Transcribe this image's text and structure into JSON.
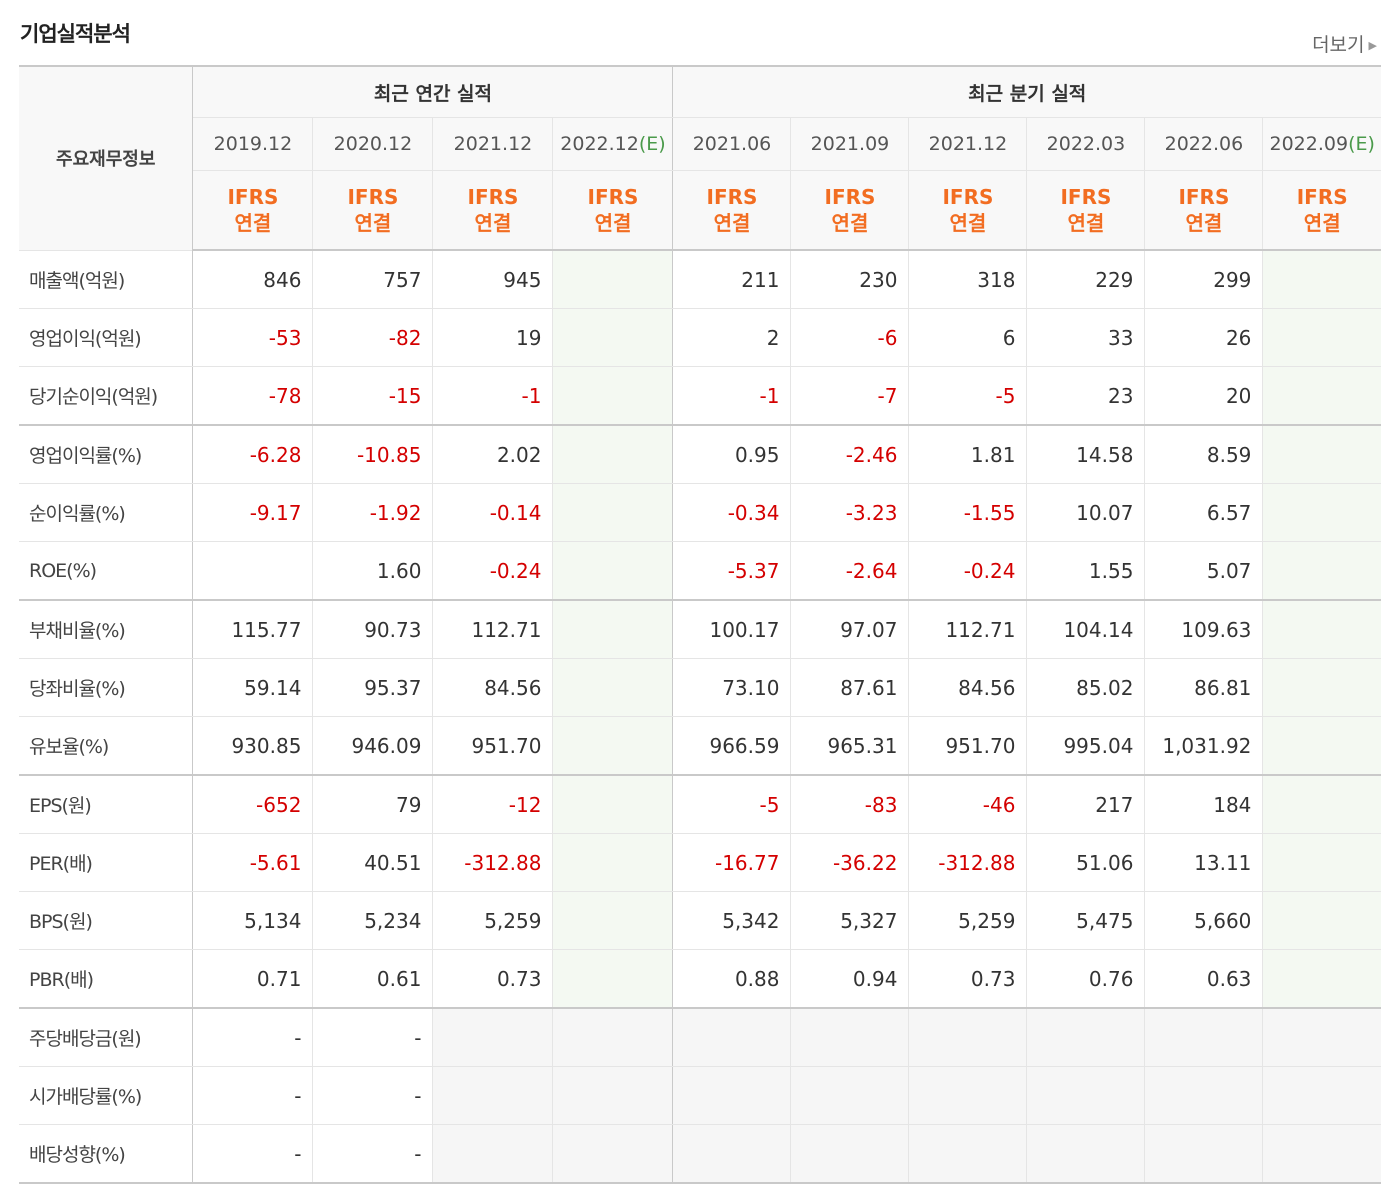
{
  "title": "기업실적분석",
  "more_label": "더보기",
  "header": {
    "corner": "주요재무정보",
    "annual_group": "최근 연간 실적",
    "quarter_group": "최근 분기 실적",
    "periods": [
      "2019.12",
      "2020.12",
      "2021.12",
      "2022.12",
      "2021.06",
      "2021.09",
      "2021.12",
      "2022.03",
      "2022.06",
      "2022.09"
    ],
    "estimate_mark": "(E)",
    "ifrs_line1": "IFRS",
    "ifrs_line2": "연결"
  },
  "colors": {
    "negative": "#d40000",
    "ifrs": "#f26d21",
    "estimate": "#4a9a4a"
  },
  "rows": [
    {
      "label": "매출액(억원)",
      "values": [
        "846",
        "757",
        "945",
        "",
        "211",
        "230",
        "318",
        "229",
        "299",
        ""
      ]
    },
    {
      "label": "영업이익(억원)",
      "values": [
        "-53",
        "-82",
        "19",
        "",
        "2",
        "-6",
        "6",
        "33",
        "26",
        ""
      ]
    },
    {
      "label": "당기순이익(억원)",
      "values": [
        "-78",
        "-15",
        "-1",
        "",
        "-1",
        "-7",
        "-5",
        "23",
        "20",
        ""
      ]
    },
    {
      "label": "영업이익률(%)",
      "values": [
        "-6.28",
        "-10.85",
        "2.02",
        "",
        "0.95",
        "-2.46",
        "1.81",
        "14.58",
        "8.59",
        ""
      ]
    },
    {
      "label": "순이익률(%)",
      "values": [
        "-9.17",
        "-1.92",
        "-0.14",
        "",
        "-0.34",
        "-3.23",
        "-1.55",
        "10.07",
        "6.57",
        ""
      ]
    },
    {
      "label": "ROE(%)",
      "values": [
        "",
        "1.60",
        "-0.24",
        "",
        "-5.37",
        "-2.64",
        "-0.24",
        "1.55",
        "5.07",
        ""
      ]
    },
    {
      "label": "부채비율(%)",
      "values": [
        "115.77",
        "90.73",
        "112.71",
        "",
        "100.17",
        "97.07",
        "112.71",
        "104.14",
        "109.63",
        ""
      ]
    },
    {
      "label": "당좌비율(%)",
      "values": [
        "59.14",
        "95.37",
        "84.56",
        "",
        "73.10",
        "87.61",
        "84.56",
        "85.02",
        "86.81",
        ""
      ]
    },
    {
      "label": "유보율(%)",
      "values": [
        "930.85",
        "946.09",
        "951.70",
        "",
        "966.59",
        "965.31",
        "951.70",
        "995.04",
        "1,031.92",
        ""
      ]
    },
    {
      "label": "EPS(원)",
      "values": [
        "-652",
        "79",
        "-12",
        "",
        "-5",
        "-83",
        "-46",
        "217",
        "184",
        ""
      ]
    },
    {
      "label": "PER(배)",
      "values": [
        "-5.61",
        "40.51",
        "-312.88",
        "",
        "-16.77",
        "-36.22",
        "-312.88",
        "51.06",
        "13.11",
        ""
      ]
    },
    {
      "label": "BPS(원)",
      "values": [
        "5,134",
        "5,234",
        "5,259",
        "",
        "5,342",
        "5,327",
        "5,259",
        "5,475",
        "5,660",
        ""
      ]
    },
    {
      "label": "PBR(배)",
      "values": [
        "0.71",
        "0.61",
        "0.73",
        "",
        "0.88",
        "0.94",
        "0.73",
        "0.76",
        "0.63",
        ""
      ]
    },
    {
      "label": "주당배당금(원)",
      "values": [
        "-",
        "-",
        "",
        "",
        "",
        "",
        "",
        "",
        "",
        ""
      ]
    },
    {
      "label": "시가배당률(%)",
      "values": [
        "-",
        "-",
        "",
        "",
        "",
        "",
        "",
        "",
        "",
        ""
      ]
    },
    {
      "label": "배당성향(%)",
      "values": [
        "-",
        "-",
        "",
        "",
        "",
        "",
        "",
        "",
        "",
        ""
      ]
    }
  ]
}
